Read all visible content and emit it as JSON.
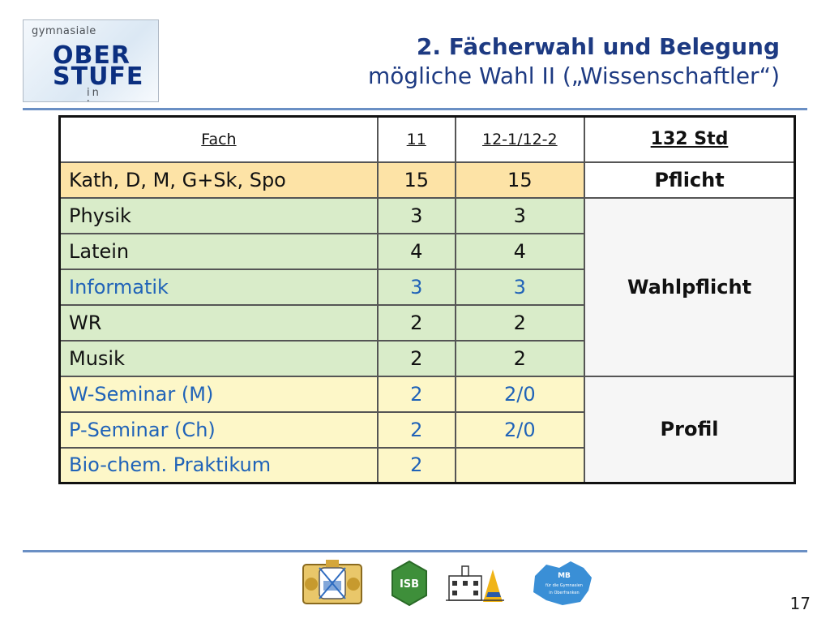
{
  "logo": {
    "line1": "gymnasiale",
    "line2": "OBER",
    "line3": "STUFE",
    "line4": "in bayern"
  },
  "title": {
    "line1": "2. Fächerwahl und Belegung",
    "line2": "mögliche Wahl  II („Wissenschaftler“)"
  },
  "table": {
    "headers": [
      "Fach",
      "11",
      "12-1/12-2",
      "132 Std"
    ],
    "rows": [
      {
        "fach": "Kath, D, M, G+Sk, Spo",
        "y11": "15",
        "y12": "15"
      },
      {
        "fach": "Physik",
        "y11": "3",
        "y12": "3"
      },
      {
        "fach": "Latein",
        "y11": "4",
        "y12": "4"
      },
      {
        "fach": "Informatik",
        "y11": "3",
        "y12": "3"
      },
      {
        "fach": "WR",
        "y11": "2",
        "y12": "2"
      },
      {
        "fach": "Musik",
        "y11": "2",
        "y12": "2"
      },
      {
        "fach": "W-Seminar (M)",
        "y11": "2",
        "y12": "2/0"
      },
      {
        "fach": "P-Seminar (Ch)",
        "y11": "2",
        "y12": "2/0"
      },
      {
        "fach": "Bio-chem. Praktikum",
        "y11": "2",
        "y12": ""
      }
    ],
    "categories": {
      "pflicht": "Pflicht",
      "wahlpflicht": "Wahlpflicht",
      "profil": "Profil"
    }
  },
  "footer": {
    "logos": [
      "bavarian-coat-of-arms",
      "isb-logo",
      "school-building-logo",
      "mb-oberfranken-logo"
    ],
    "mb_text": {
      "line1": "MB",
      "line2": "für die Gymnasien",
      "line3": "in Oberfranken"
    },
    "isb_text": "ISB",
    "page": "17"
  },
  "colors": {
    "title": "#1d3a82",
    "accent_blue": "#2063b8",
    "rule": "#6a8fc4",
    "orange": "#fde3a6",
    "green": "#d9ecc9",
    "yellow": "#fdf7c8"
  }
}
